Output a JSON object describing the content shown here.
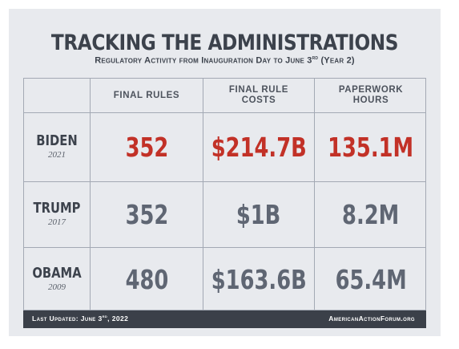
{
  "title": "TRACKING THE ADMINISTRATIONS",
  "subtitle": {
    "prefix": "Regulatory Activity from Inauguration Day to June 3",
    "sup": "rd",
    "suffix": " (Year 2)"
  },
  "footer": {
    "updated_prefix": "Last Updated: June 3",
    "updated_sup": "rd",
    "updated_suffix": ", 2022",
    "source": "AmericanActionForum.org"
  },
  "colors": {
    "highlight": "#c23127",
    "value": "#5f6673",
    "header_text": "#3c424c",
    "background": "#e8eaee",
    "footer_bg": "#3b4049"
  },
  "chart_data": {
    "type": "table",
    "columns": [
      "FINAL RULES",
      "FINAL RULE\nCOSTS",
      "PAPERWORK\nHOURS"
    ],
    "column_labels": [
      [
        "FINAL RULES"
      ],
      [
        "FINAL RULE",
        "COSTS"
      ],
      [
        "PAPERWORK",
        "HOURS"
      ]
    ],
    "rows": [
      {
        "name": "BIDEN",
        "year": "2021",
        "values": [
          "352",
          "$214.7B",
          "135.1M"
        ],
        "highlight": true
      },
      {
        "name": "TRUMP",
        "year": "2017",
        "values": [
          "352",
          "$1B",
          "8.2M"
        ],
        "highlight": false
      },
      {
        "name": "OBAMA",
        "year": "2009",
        "values": [
          "480",
          "$163.6B",
          "65.4M"
        ],
        "highlight": false
      }
    ]
  }
}
